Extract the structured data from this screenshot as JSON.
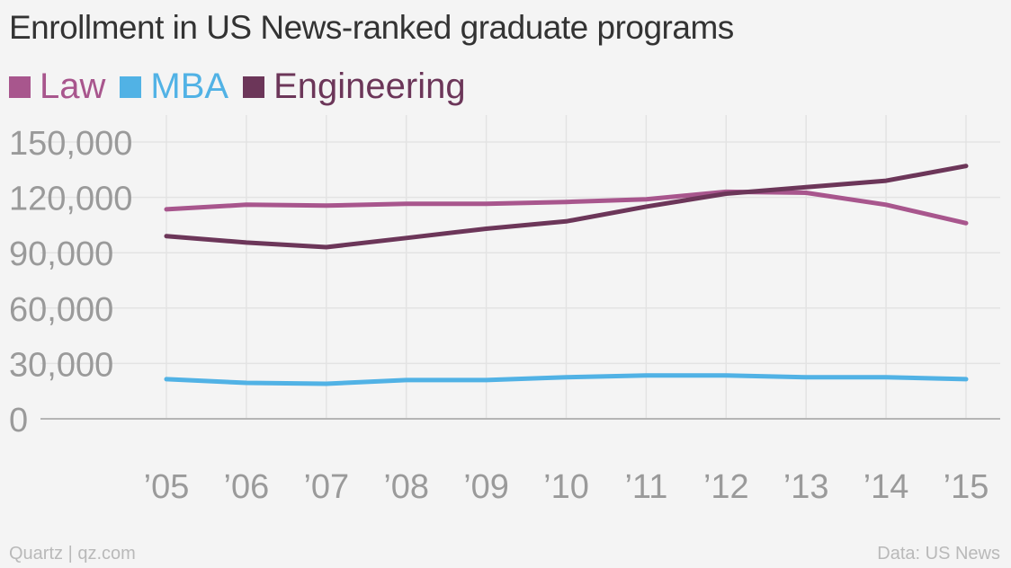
{
  "title": "Enrollment in US News-ranked graduate programs",
  "footer": {
    "source_left": "Quartz | qz.com",
    "source_right": "Data: US News"
  },
  "colors": {
    "background": "#f4f4f4",
    "grid": "#e3e3e3",
    "axis_text": "#9a9a9a",
    "baseline": "#b5b5b5"
  },
  "chart_data": {
    "type": "line",
    "title": "Enrollment in US News-ranked graduate programs",
    "xlabel": "",
    "ylabel": "",
    "x": [
      "’05",
      "’06",
      "’07",
      "’08",
      "’09",
      "’10",
      "’11",
      "’12",
      "’13",
      "’14",
      "’15"
    ],
    "ylim": [
      0,
      150000
    ],
    "yticks": [
      0,
      30000,
      60000,
      90000,
      120000,
      150000
    ],
    "ytick_labels": [
      "0",
      "30,000",
      "60,000",
      "90,000",
      "120,000",
      "150,000"
    ],
    "grid": true,
    "legend_position": "top-left",
    "series": [
      {
        "name": "Law",
        "color": "#a8568d",
        "values": [
          113500,
          116000,
          115500,
          116500,
          116500,
          117500,
          119000,
          123000,
          122500,
          116000,
          106000
        ]
      },
      {
        "name": "MBA",
        "color": "#51b2e5",
        "values": [
          21500,
          19500,
          19000,
          21000,
          21000,
          22500,
          23500,
          23500,
          22500,
          22500,
          21500
        ]
      },
      {
        "name": "Engineering",
        "color": "#6c3659",
        "values": [
          99000,
          95500,
          93000,
          98000,
          103000,
          107000,
          115000,
          122000,
          125500,
          129000,
          137000
        ]
      }
    ]
  }
}
